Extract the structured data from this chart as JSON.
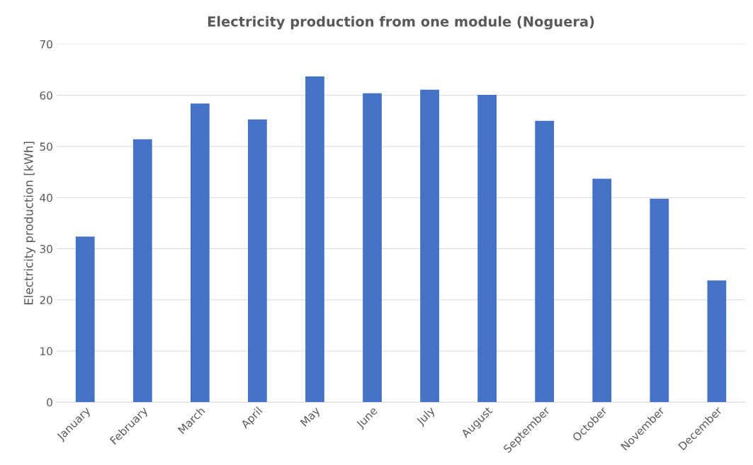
{
  "chart_data": {
    "type": "bar",
    "title": "Electricity production from one module (Noguera)",
    "ylabel": "Electricity production [kWh]",
    "categories": [
      "January",
      "February",
      "March",
      "April",
      "May",
      "June",
      "July",
      "August",
      "September",
      "October",
      "November",
      "December"
    ],
    "values": [
      32.4,
      51.4,
      58.4,
      55.3,
      63.7,
      60.4,
      61.1,
      60.1,
      55.0,
      43.7,
      39.8,
      23.8
    ],
    "color": "#4472c4",
    "ylim": [
      0,
      70
    ],
    "yticks": [
      0,
      10,
      20,
      30,
      40,
      50,
      60,
      70
    ],
    "grid": "y"
  }
}
